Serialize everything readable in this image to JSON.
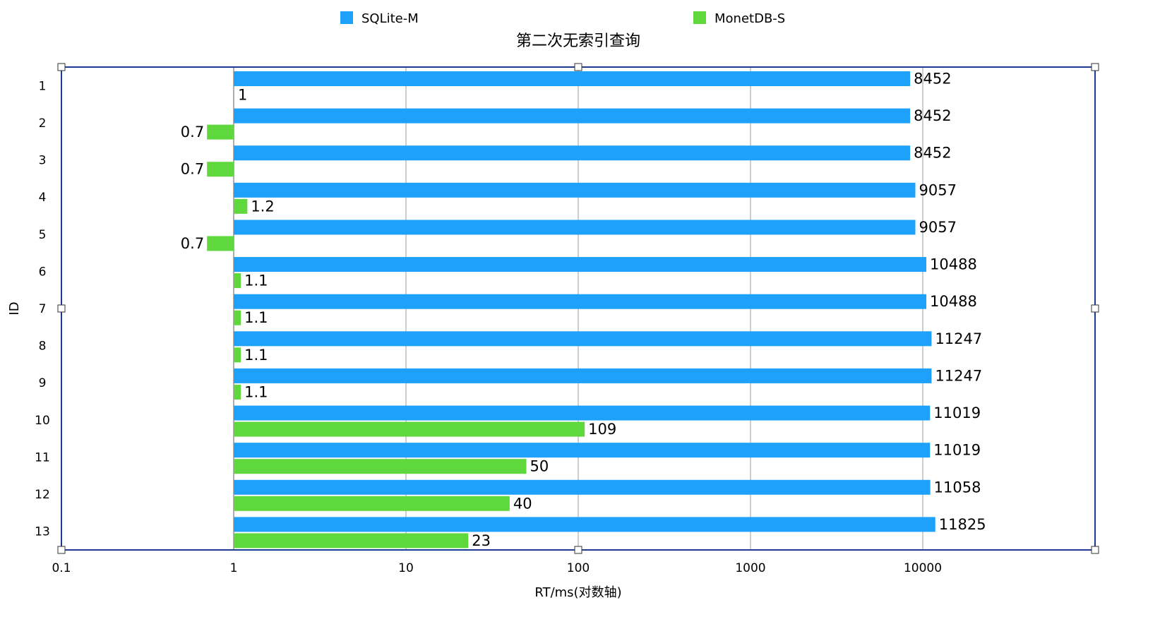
{
  "chart_data": {
    "type": "bar",
    "orientation": "horizontal",
    "title": "第二次无索引查询",
    "xlabel": "RT/ms(对数轴)",
    "ylabel": "ID",
    "x_scale": "log",
    "xlim": [
      0.1,
      100000
    ],
    "x_ticks": [
      "0.1",
      "1",
      "10",
      "100",
      "1000",
      "10000"
    ],
    "bar_baseline": 1,
    "grid": "vertical",
    "legend_position": "top",
    "categories": [
      "1",
      "2",
      "3",
      "4",
      "5",
      "6",
      "7",
      "8",
      "9",
      "10",
      "11",
      "12",
      "13"
    ],
    "series": [
      {
        "name": "SQLite-M",
        "color": "#1EA1FA",
        "values": [
          8452,
          8452,
          8452,
          9057,
          9057,
          10488,
          10488,
          11247,
          11247,
          11019,
          11019,
          11058,
          11825
        ],
        "labels": [
          "8452",
          "8452",
          "8452",
          "9057",
          "9057",
          "10488",
          "10488",
          "11247",
          "11247",
          "11019",
          "11019",
          "11058",
          "11825"
        ]
      },
      {
        "name": "MonetDB-S",
        "color": "#5FD83D",
        "values": [
          1,
          0.7,
          0.7,
          1.2,
          0.7,
          1.1,
          1.1,
          1.1,
          1.1,
          109,
          50,
          40,
          23
        ],
        "labels": [
          "1",
          "0.7",
          "0.7",
          "1.2",
          "0.7",
          "1.1",
          "1.1",
          "1.1",
          "1.1",
          "109",
          "50",
          "40",
          "23"
        ]
      }
    ]
  }
}
